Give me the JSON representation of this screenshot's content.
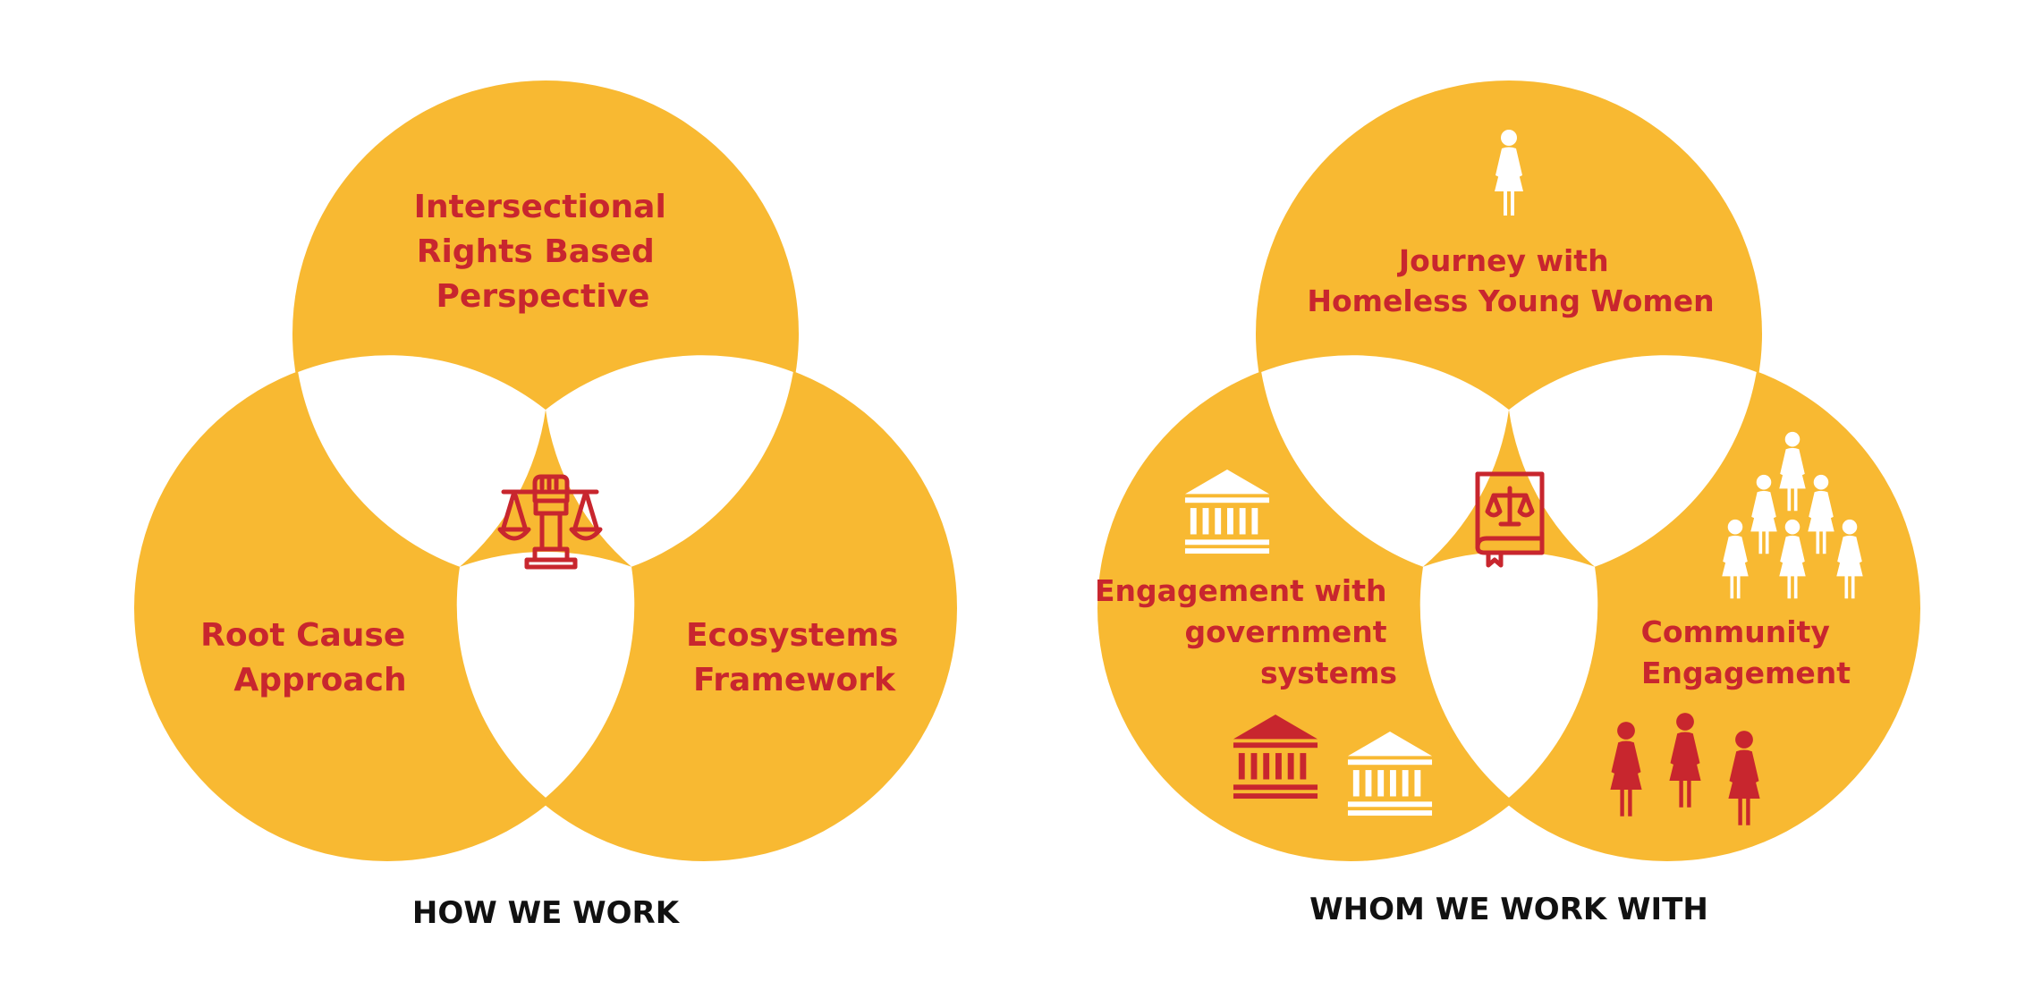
{
  "colors": {
    "circle_fill": "#F8B932",
    "overlap_fill": "#FFFFFF",
    "label_color": "#C8262E",
    "icon_red": "#C8262E",
    "icon_white": "#FFFFFF",
    "caption_color": "#111111",
    "background": "#FFFFFF"
  },
  "left_diagram": {
    "caption": "HOW WE WORK",
    "circles": {
      "top": {
        "label_lines": [
          "Intersectional",
          "Rights Based",
          "Perspective"
        ]
      },
      "left": {
        "label_lines": [
          "Root Cause",
          "Approach"
        ]
      },
      "right": {
        "label_lines": [
          "Ecosystems",
          "Framework"
        ]
      }
    },
    "center_icon": "fist-scales-of-justice-icon"
  },
  "right_diagram": {
    "caption": "WHOM WE WORK WITH",
    "circles": {
      "top": {
        "label_lines": [
          "Journey with",
          "Homeless Young Women"
        ],
        "icon": "woman-icon"
      },
      "left": {
        "label_lines": [
          "Engagement with",
          "government",
          "systems"
        ],
        "icons": [
          "government-building-icon",
          "government-building-icon",
          "government-building-icon"
        ]
      },
      "right": {
        "label_lines": [
          "Community",
          "Engagement"
        ],
        "icons": [
          "women-group-icon",
          "women-group-icon"
        ]
      }
    },
    "center_icon": "law-book-icon"
  }
}
